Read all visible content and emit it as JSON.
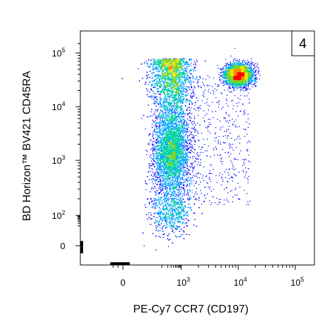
{
  "chart_data": {
    "type": "scatter",
    "subtype": "flow-cytometry-density-dot-plot",
    "title": "",
    "panel_label": "4",
    "xlabel": "PE-Cy7 CCR7 (CD197)",
    "ylabel": "BD Horizon™ BV421 CD45RA",
    "x_scale": "biexponential",
    "y_scale": "biexponential",
    "xlim": [
      -300,
      200000
    ],
    "ylim": [
      -60,
      150000
    ],
    "x_ticks": [
      {
        "value": 0,
        "label": "0"
      },
      {
        "value": 1000,
        "label": "10",
        "sup": "3"
      },
      {
        "value": 10000,
        "label": "10",
        "sup": "4"
      },
      {
        "value": 100000,
        "label": "10",
        "sup": "5"
      }
    ],
    "y_ticks": [
      {
        "value": 0,
        "label": "0"
      },
      {
        "value": 100,
        "label": "10",
        "sup": "2"
      },
      {
        "value": 1000,
        "label": "10",
        "sup": "3"
      },
      {
        "value": 10000,
        "label": "10",
        "sup": "4"
      },
      {
        "value": 100000,
        "label": "10",
        "sup": "5"
      }
    ],
    "density_colors": [
      "#0000ff",
      "#00a0ff",
      "#00d2a0",
      "#7ed321",
      "#e6e600",
      "#ff8c00",
      "#ff0000"
    ],
    "populations": [
      {
        "description_code": "CCR7- CD45RA bright column",
        "center_x": 300,
        "center_y": 5000,
        "x_spread_decades": 0.18,
        "y_range": [
          100,
          80000
        ],
        "relative_density": 0.55
      },
      {
        "description_code": "CCR7- CD45RA mid cluster",
        "center_x": 280,
        "center_y": 1500,
        "x_spread_decades": 0.15,
        "y_range": [
          300,
          6000
        ],
        "relative_density": 0.2
      },
      {
        "description_code": "CCR7+ CD45RA+ naive cluster",
        "center_x": 10000,
        "center_y": 40000,
        "x_spread_decades": 0.12,
        "y_range": [
          20000,
          70000
        ],
        "relative_density": 0.2
      },
      {
        "description_code": "scattered bridge",
        "center_x": 2000,
        "center_y": 3000,
        "x_spread_decades": 0.5,
        "y_range": [
          200,
          40000
        ],
        "relative_density": 0.05
      }
    ],
    "grid": false,
    "legend": "none"
  }
}
